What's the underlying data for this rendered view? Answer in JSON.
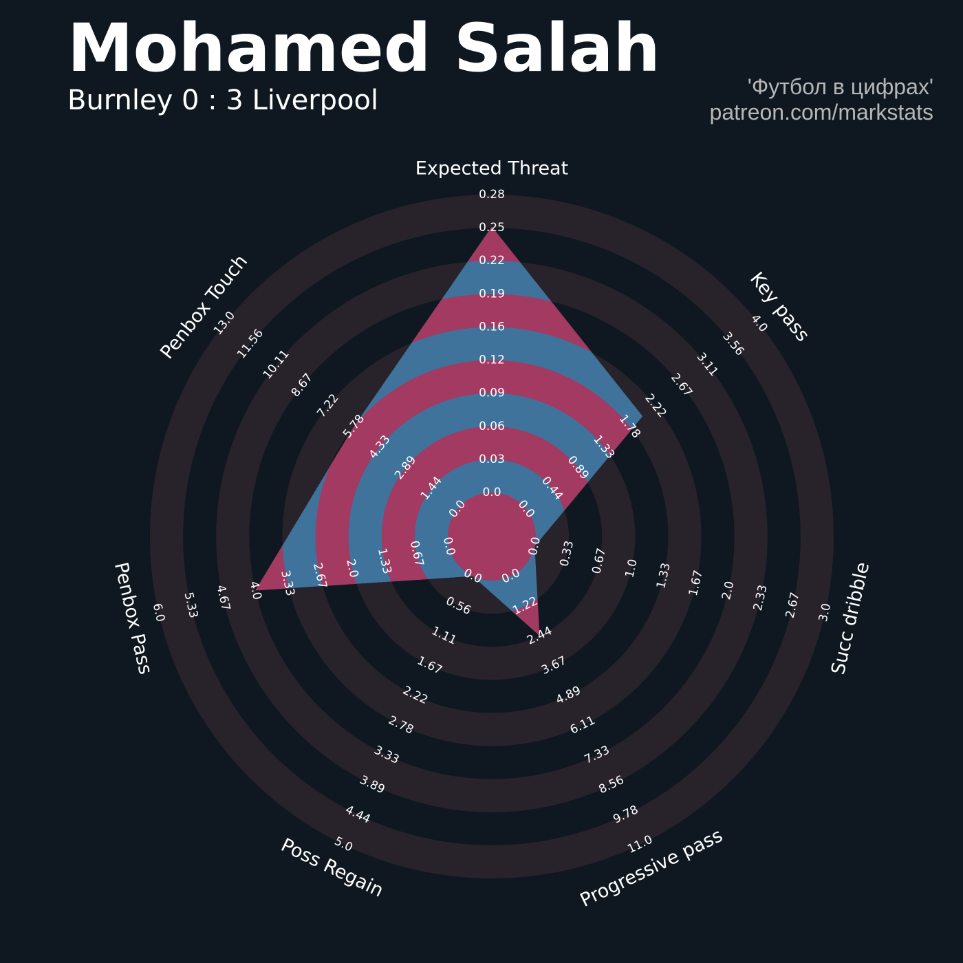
{
  "header": {
    "player": "Mohamed Salah",
    "match": "Burnley 0 : 3 Liverpool",
    "credit_line1": "'Футбол в цифрах'",
    "credit_line2": "patreon.com/markstats"
  },
  "colors": {
    "background": "#0f1820",
    "ring": "#28232b",
    "fill_blue": "#3f739c",
    "fill_red": "#a23a61"
  },
  "chart_data": {
    "type": "radar",
    "title": "Mohamed Salah",
    "subtitle": "Burnley 0 : 3 Liverpool",
    "axes": [
      {
        "name": "Expected Threat",
        "value": 0.25,
        "ticks": [
          "0.0",
          "0.03",
          "0.06",
          "0.09",
          "0.12",
          "0.16",
          "0.19",
          "0.22",
          "0.25",
          "0.28"
        ]
      },
      {
        "name": "Key pass",
        "value": 2.0,
        "ticks": [
          "0.0",
          "0.44",
          "0.89",
          "1.33",
          "1.78",
          "2.22",
          "2.67",
          "3.11",
          "3.56",
          "4.0"
        ]
      },
      {
        "name": "Succ dribble",
        "value": 0.0,
        "ticks": [
          "0.0",
          "0.33",
          "0.67",
          "1.0",
          "1.33",
          "1.67",
          "2.0",
          "2.33",
          "2.67",
          "3.0"
        ]
      },
      {
        "name": "Progressive pass",
        "value": 2.44,
        "ticks": [
          "0.0",
          "1.22",
          "2.44",
          "3.67",
          "4.89",
          "6.11",
          "7.33",
          "8.56",
          "9.78",
          "11.0"
        ]
      },
      {
        "name": "Poss Regain",
        "value": 0.0,
        "ticks": [
          "0.0",
          "0.56",
          "1.11",
          "1.67",
          "2.22",
          "2.78",
          "3.33",
          "3.89",
          "4.44",
          "5.0"
        ]
      },
      {
        "name": "Penbox Pass",
        "value": 4.0,
        "ticks": [
          "0.0",
          "0.67",
          "1.33",
          "2.0",
          "2.67",
          "3.33",
          "4.0",
          "4.67",
          "5.33",
          "6.0"
        ]
      },
      {
        "name": "Penbox Touch",
        "value": 5.78,
        "ticks": [
          "0.0",
          "1.44",
          "2.89",
          "4.33",
          "5.78",
          "7.22",
          "8.67",
          "10.11",
          "11.56",
          "13.0"
        ]
      }
    ]
  }
}
